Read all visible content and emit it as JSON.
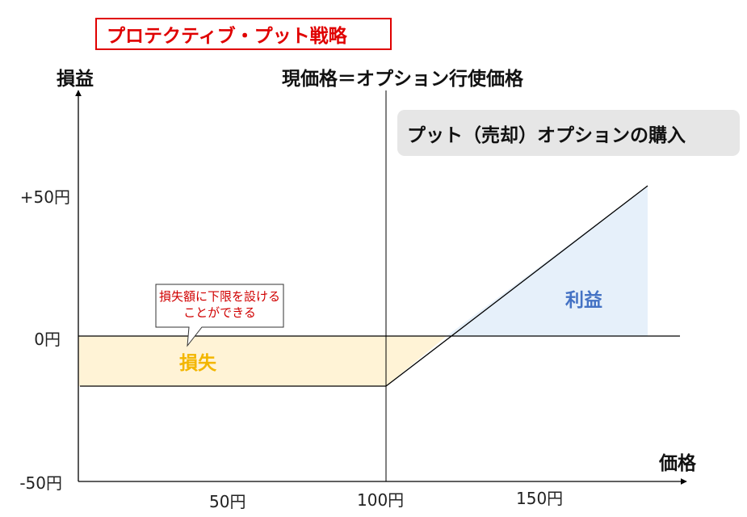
{
  "title": "プロテクティブ・プット戦略",
  "axes": {
    "y_title": "損益",
    "x_title": "価格",
    "y_ticks": {
      "plus50": "+50円",
      "zero": "0円",
      "minus50": "-50円"
    },
    "x_ticks": {
      "x50": "50円",
      "x100": "100円",
      "x150": "150円"
    }
  },
  "annotations": {
    "current_price": "現価格＝オプション行使価格",
    "put_box": "プット（売却）オプションの購入",
    "callout": "損失額に下限を設けることができる",
    "loss": "損失",
    "profit": "利益"
  },
  "colors": {
    "title": "#e00000",
    "loss_fill": "#fff3d6",
    "profit_fill": "#e6f0fa",
    "loss_text": "#f3b600",
    "profit_text": "#4472c4",
    "callout_text": "#d00000",
    "put_box_bg": "#e6e6e6"
  }
}
